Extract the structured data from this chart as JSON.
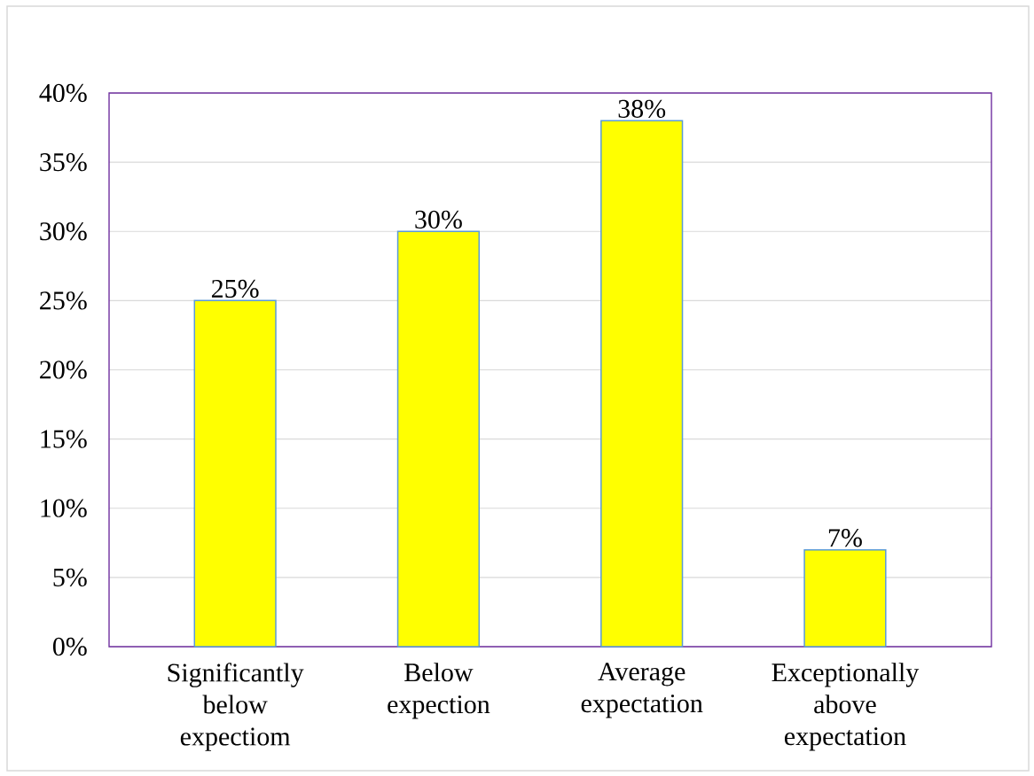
{
  "chart_data": {
    "type": "bar",
    "categories": [
      "Significantly below expectiom",
      "Below expection",
      "Average expectation",
      "Exceptionally above expectation"
    ],
    "values": [
      25,
      30,
      38,
      7
    ],
    "value_labels": [
      "25%",
      "30%",
      "38%",
      "7%"
    ],
    "color": "#ffff00",
    "ylim": [
      0,
      40
    ],
    "yticks": [
      {
        "value": 0,
        "label": "0%"
      },
      {
        "value": 5,
        "label": "5%"
      },
      {
        "value": 10,
        "label": "10%"
      },
      {
        "value": 15,
        "label": "15%"
      },
      {
        "value": 20,
        "label": "20%"
      },
      {
        "value": 25,
        "label": "25%"
      },
      {
        "value": 30,
        "label": "30%"
      },
      {
        "value": 35,
        "label": "35%"
      },
      {
        "value": 40,
        "label": "40%"
      }
    ],
    "grid": "y"
  }
}
